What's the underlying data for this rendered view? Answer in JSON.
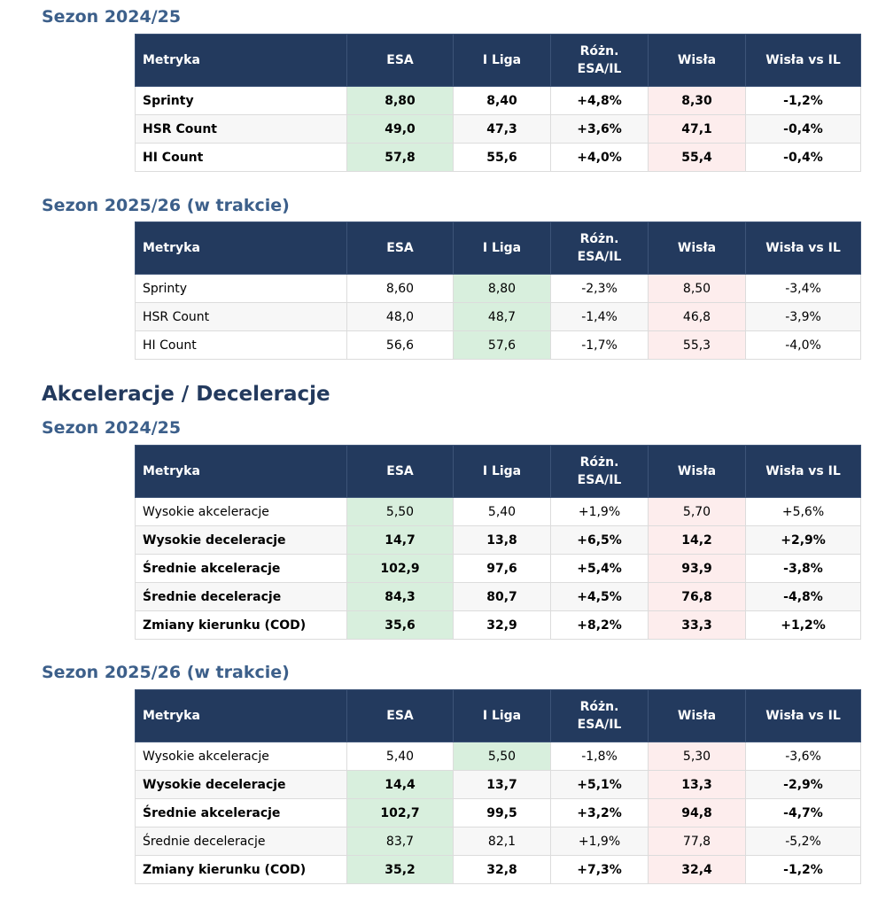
{
  "headers": [
    "Metryka",
    "ESA",
    "I Liga",
    "Różn.\nESA/IL",
    "Wisła",
    "Wisła vs IL"
  ],
  "headings": {
    "season_a": "Sezon 2024/25",
    "season_b": "Sezon 2025/26 (w trakcie)",
    "section_accel": "Akceleracje / Deceleracje",
    "season_c": "Sezon 2024/25",
    "season_d": "Sezon 2025/26 (w trakcie)"
  },
  "colors": {
    "header_bg": "#233a5e",
    "season_heading": "#3c5f8a",
    "section_heading": "#233a5e",
    "highlight_green": "#d8efdd",
    "highlight_red": "#fdeded"
  },
  "tables": [
    {
      "id": "sprint-2024-25",
      "highlight_col": 1,
      "rows": [
        {
          "cells": [
            "Sprinty",
            "8,80",
            "8,40",
            "+4,8%",
            "8,30",
            "-1,2%"
          ],
          "bold": true
        },
        {
          "cells": [
            "HSR Count",
            "49,0",
            "47,3",
            "+3,6%",
            "47,1",
            "-0,4%"
          ],
          "bold": true
        },
        {
          "cells": [
            "HI Count",
            "57,8",
            "55,6",
            "+4,0%",
            "55,4",
            "-0,4%"
          ],
          "bold": true
        }
      ]
    },
    {
      "id": "sprint-2025-26",
      "highlight_col": 2,
      "rows": [
        {
          "cells": [
            "Sprinty",
            "8,60",
            "8,80",
            "-2,3%",
            "8,50",
            "-3,4%"
          ],
          "bold": false
        },
        {
          "cells": [
            "HSR Count",
            "48,0",
            "48,7",
            "-1,4%",
            "46,8",
            "-3,9%"
          ],
          "bold": false
        },
        {
          "cells": [
            "HI Count",
            "56,6",
            "57,6",
            "-1,7%",
            "55,3",
            "-4,0%"
          ],
          "bold": false
        }
      ]
    },
    {
      "id": "accel-2024-25",
      "highlight_col": 1,
      "rows": [
        {
          "cells": [
            "Wysokie akceleracje",
            "5,50",
            "5,40",
            "+1,9%",
            "5,70",
            "+5,6%"
          ],
          "bold": false
        },
        {
          "cells": [
            "Wysokie deceleracje",
            "14,7",
            "13,8",
            "+6,5%",
            "14,2",
            "+2,9%"
          ],
          "bold": true
        },
        {
          "cells": [
            "Średnie akceleracje",
            "102,9",
            "97,6",
            "+5,4%",
            "93,9",
            "-3,8%"
          ],
          "bold": true
        },
        {
          "cells": [
            "Średnie deceleracje",
            "84,3",
            "80,7",
            "+4,5%",
            "76,8",
            "-4,8%"
          ],
          "bold": true
        },
        {
          "cells": [
            "Zmiany kierunku (COD)",
            "35,6",
            "32,9",
            "+8,2%",
            "33,3",
            "+1,2%"
          ],
          "bold": true
        }
      ]
    },
    {
      "id": "accel-2025-26",
      "highlight_col": 1,
      "rows": [
        {
          "cells": [
            "Wysokie akceleracje",
            "5,40",
            "5,50",
            "-1,8%",
            "5,30",
            "-3,6%"
          ],
          "bold": false,
          "highlight_col": 2
        },
        {
          "cells": [
            "Wysokie deceleracje",
            "14,4",
            "13,7",
            "+5,1%",
            "13,3",
            "-2,9%"
          ],
          "bold": true
        },
        {
          "cells": [
            "Średnie akceleracje",
            "102,7",
            "99,5",
            "+3,2%",
            "94,8",
            "-4,7%"
          ],
          "bold": true
        },
        {
          "cells": [
            "Średnie deceleracje",
            "83,7",
            "82,1",
            "+1,9%",
            "77,8",
            "-5,2%"
          ],
          "bold": false
        },
        {
          "cells": [
            "Zmiany kierunku (COD)",
            "35,2",
            "32,8",
            "+7,3%",
            "32,4",
            "-1,2%"
          ],
          "bold": true
        }
      ]
    }
  ]
}
